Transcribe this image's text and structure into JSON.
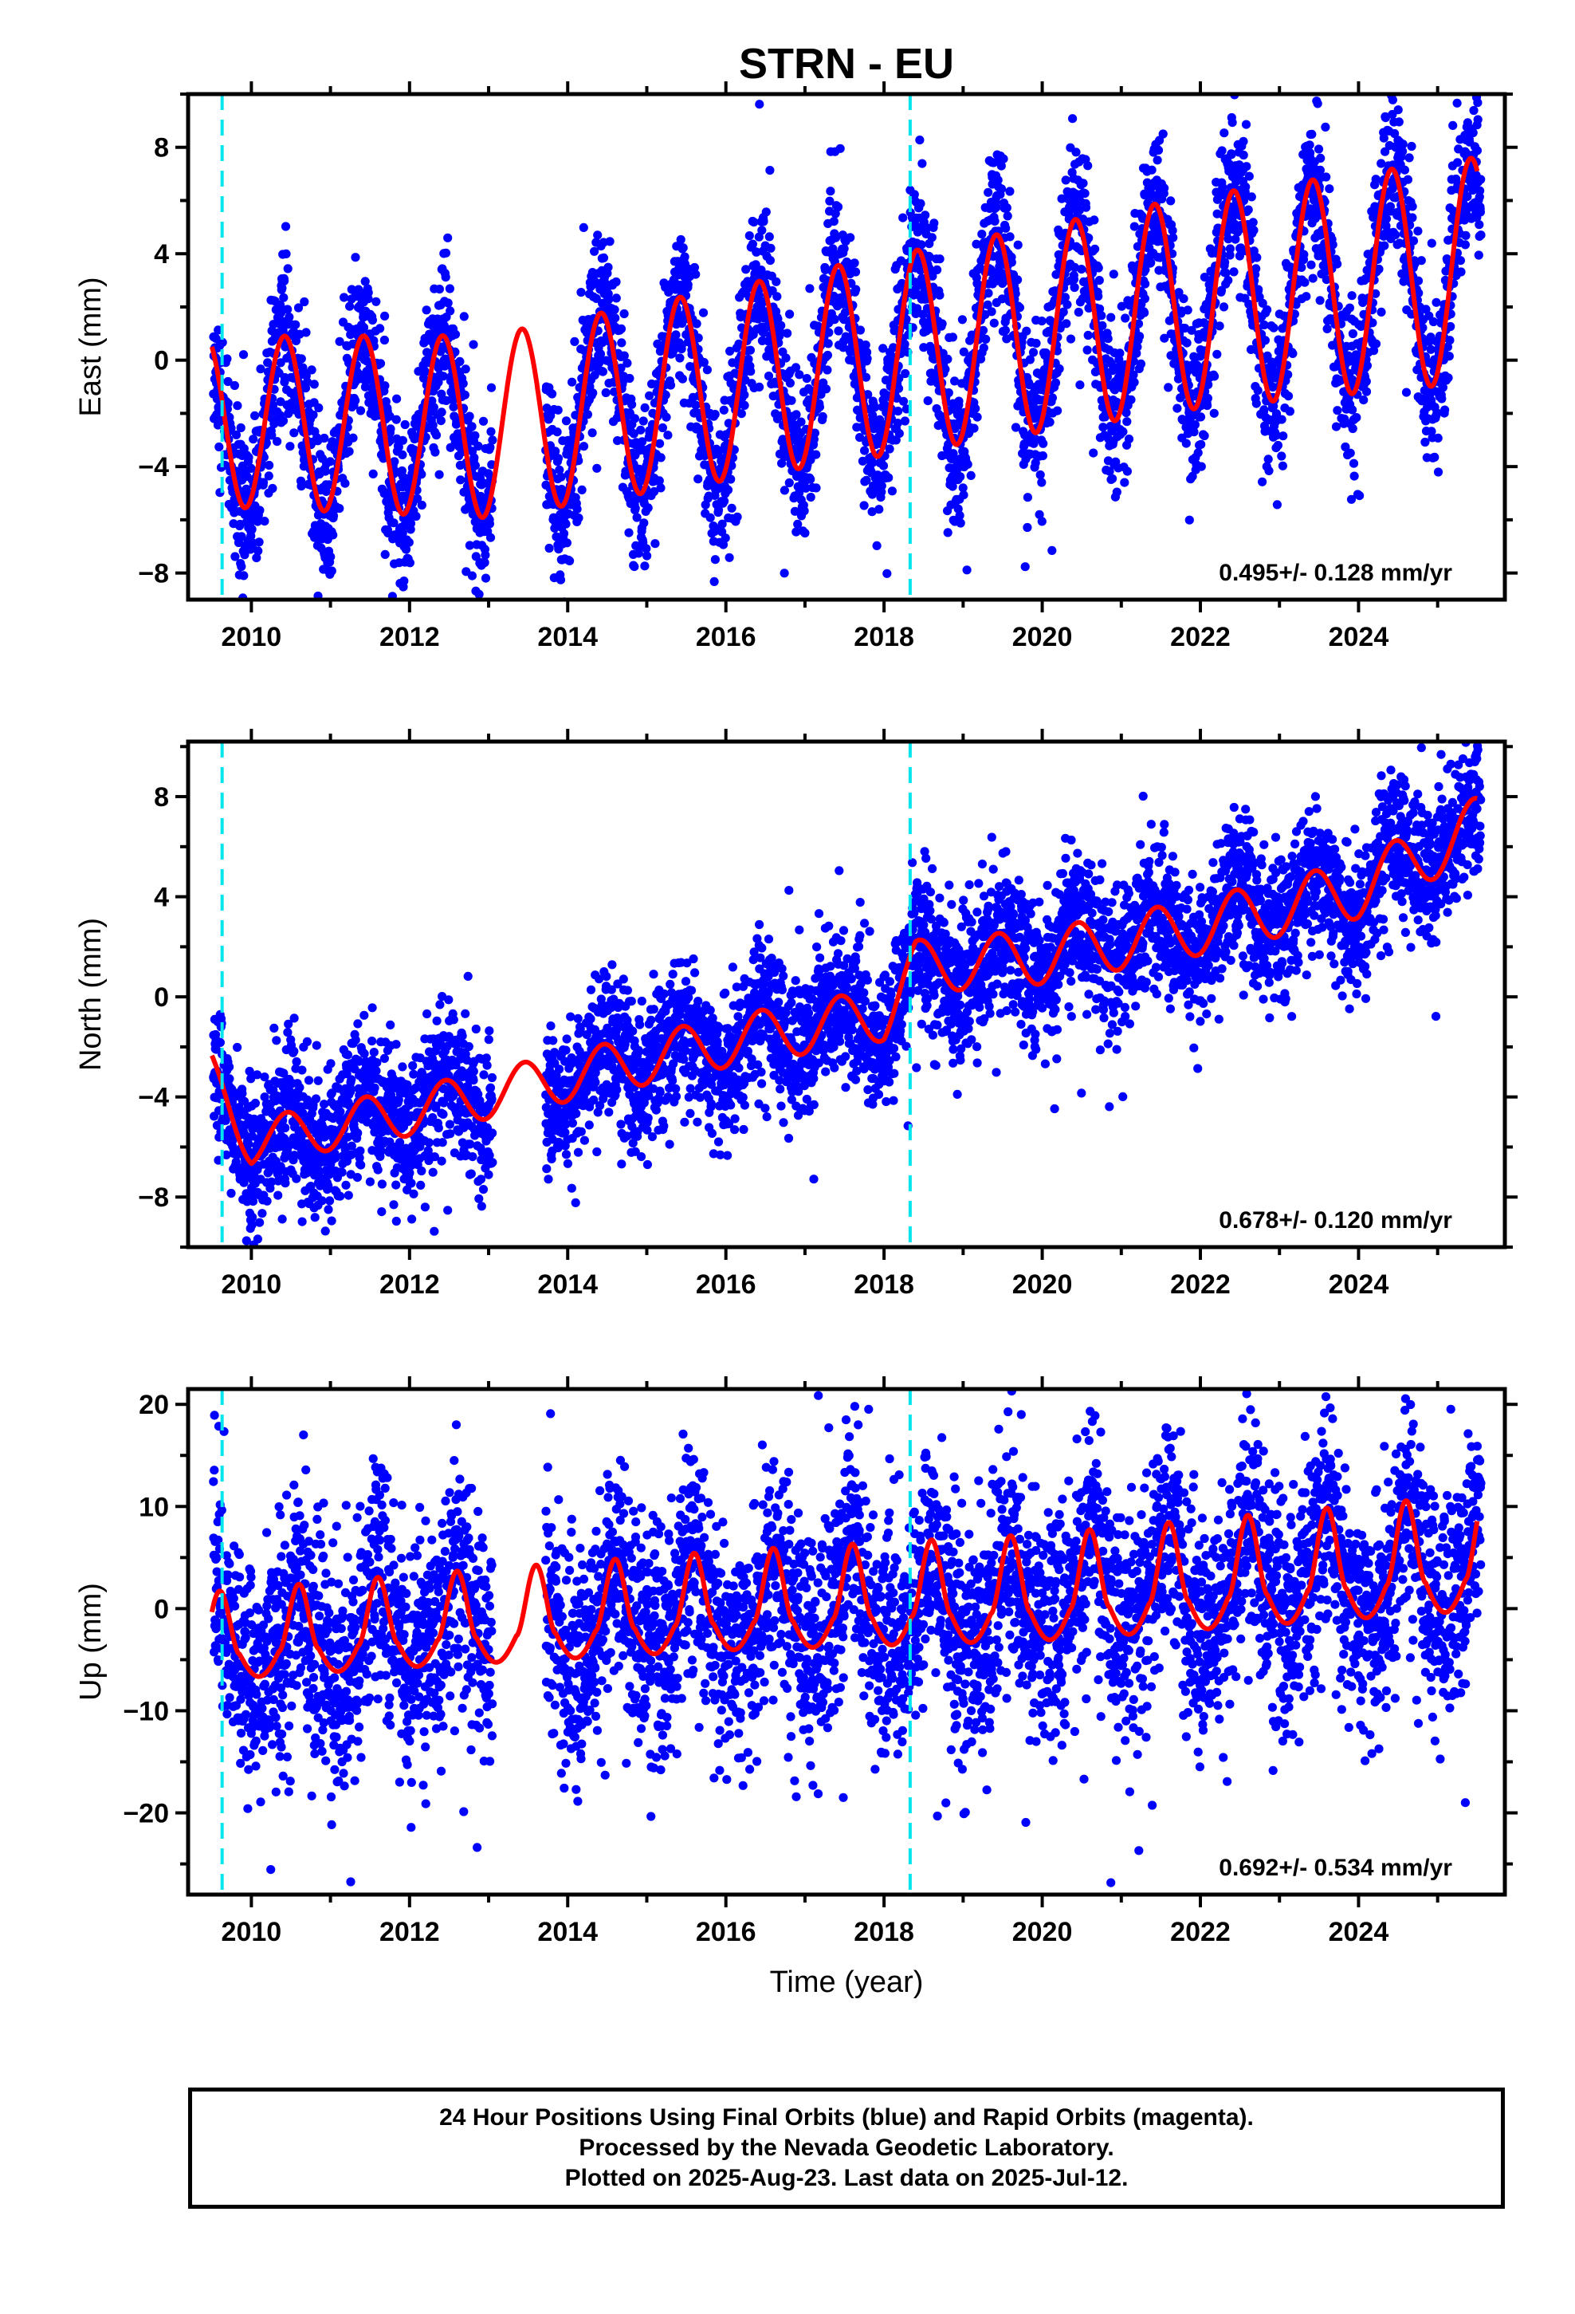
{
  "title": "STRN - EU",
  "footer": {
    "lines": [
      "24 Hour Positions Using Final Orbits (blue) and Rapid Orbits (magenta).",
      "Processed by the Nevada Geodetic Laboratory.",
      "Plotted on 2025-Aug-23. Last data on 2025-Jul-12."
    ]
  },
  "colors": {
    "points": "#0000ff",
    "model": "#ff0000",
    "breaks": "#00e5ee"
  },
  "chart_data": [
    {
      "type": "scatter",
      "component": "east",
      "ylabel": "East (mm)",
      "xlabel": "",
      "xlim": [
        2009.2,
        2025.85
      ],
      "ylim": [
        -9,
        10
      ],
      "xticks": [
        2010,
        2012,
        2014,
        2016,
        2018,
        2020,
        2022,
        2024
      ],
      "yticks": [
        -8,
        -4,
        0,
        4,
        8
      ],
      "ytick_labels": [
        "−8",
        "−4",
        "0",
        "4",
        "8"
      ],
      "rate_text": "0.495+/- 0.128 mm/yr",
      "breaks": [
        2009.63,
        2018.33
      ],
      "data_gap": [
        2013.05,
        2013.72
      ],
      "model": {
        "t0": 2009.5,
        "t_end": 2025.5,
        "offset": -2.3,
        "rate": 0.495,
        "amp": 3.2,
        "amp_growth": 0.02,
        "peak_phase": 0.42,
        "annual_sd": 1.5
      },
      "trend_anchor": {
        "x": [
          2009.5,
          2013.0,
          2017.5,
          2022.0,
          2025.5
        ],
        "y": [
          -2.3,
          -2.5,
          -0.1,
          2.2,
          3.4
        ]
      },
      "sample_points": {
        "x": [
          2009.55,
          2009.9,
          2010.45,
          2010.95,
          2011.45,
          2011.95,
          2012.45,
          2012.95,
          2013.45,
          2014.05,
          2014.45,
          2014.95,
          2015.45,
          2015.95,
          2016.45,
          2016.95,
          2017.45,
          2017.95,
          2018.45,
          2018.95,
          2019.45,
          2019.95,
          2020.45,
          2020.95,
          2021.45,
          2021.95,
          2022.45,
          2022.95,
          2023.45,
          2023.95,
          2024.45,
          2024.95,
          2025.45
        ],
        "y": [
          -1.2,
          -6.4,
          -0.2,
          -5.9,
          0.2,
          -5.5,
          0.6,
          -5.0,
          1.1,
          -4.5,
          1.7,
          -4.0,
          2.2,
          -3.5,
          2.6,
          -3.0,
          3.1,
          -2.5,
          3.2,
          -2.4,
          3.7,
          -1.8,
          4.3,
          -1.3,
          4.7,
          -0.8,
          5.3,
          -0.2,
          5.8,
          0.3,
          6.3,
          0.7,
          6.7
        ]
      }
    },
    {
      "type": "scatter",
      "component": "north",
      "ylabel": "North (mm)",
      "xlabel": "",
      "xlim": [
        2009.2,
        2025.85
      ],
      "ylim": [
        -10,
        10.2
      ],
      "xticks": [
        2010,
        2012,
        2014,
        2016,
        2018,
        2020,
        2022,
        2024
      ],
      "yticks": [
        -8,
        -4,
        0,
        4,
        8
      ],
      "ytick_labels": [
        "−8",
        "−4",
        "0",
        "4",
        "8"
      ],
      "rate_text": "0.678+/- 0.120 mm/yr",
      "breaks": [
        2009.63,
        2018.33
      ],
      "data_gap": [
        2013.05,
        2013.72
      ],
      "model": {
        "t0": 2009.5,
        "t_end": 2025.5,
        "offset": -5.2,
        "rate": 0.678,
        "amp": 0.9,
        "amp_growth": 0.02,
        "peak_phase": 0.45,
        "annual_sd": 1.4
      },
      "trend_anchor": {
        "x": [
          2009.5,
          2010.0,
          2012.0,
          2014.0,
          2016.0,
          2018.0,
          2018.4,
          2020.0,
          2022.0,
          2024.0,
          2025.5
        ],
        "y": [
          -3.2,
          -5.8,
          -4.6,
          -3.2,
          -1.8,
          -0.7,
          1.2,
          1.6,
          2.8,
          4.3,
          6.8
        ]
      },
      "sample_points": {
        "x": [
          2009.55,
          2009.9,
          2010.45,
          2010.95,
          2011.45,
          2011.95,
          2012.45,
          2012.95,
          2013.45,
          2014.05,
          2014.45,
          2014.95,
          2015.45,
          2015.95,
          2016.45,
          2016.95,
          2017.45,
          2017.95,
          2018.45,
          2018.95,
          2019.45,
          2019.95,
          2020.45,
          2020.95,
          2021.45,
          2021.95,
          2022.45,
          2022.95,
          2023.45,
          2023.95,
          2024.45,
          2024.95,
          2025.45
        ],
        "y": [
          -3.2,
          -6.2,
          -3.6,
          -5.4,
          -2.9,
          -4.8,
          -2.3,
          -4.1,
          -1.6,
          -3.3,
          -1.0,
          -2.5,
          -0.4,
          -1.9,
          0.4,
          -1.3,
          1.1,
          -0.7,
          2.2,
          0.9,
          3.0,
          1.5,
          3.8,
          2.2,
          4.5,
          2.7,
          5.1,
          3.4,
          5.8,
          4.0,
          6.4,
          4.6,
          7.0
        ]
      }
    },
    {
      "type": "scatter",
      "component": "up",
      "ylabel": "Up (mm)",
      "xlabel": "Time (year)",
      "xlim": [
        2009.2,
        2025.85
      ],
      "ylim": [
        -28,
        21.5
      ],
      "xticks": [
        2010,
        2012,
        2014,
        2016,
        2018,
        2020,
        2022,
        2024
      ],
      "yticks": [
        -20,
        -10,
        0,
        10,
        20
      ],
      "ytick_labels": [
        "−20",
        "−10",
        "0",
        "10",
        "20"
      ],
      "rate_text": "0.692+/- 0.534 mm/yr",
      "breaks": [
        2009.63,
        2018.33
      ],
      "data_gap": [
        2013.05,
        2013.72
      ],
      "model": {
        "t0": 2009.5,
        "t_end": 2025.5,
        "offset": -3.8,
        "rate": 0.692,
        "amp": 4.2,
        "amp_growth": 0.02,
        "peak_phase": 0.6,
        "annual_sd": 5.5
      },
      "trend_anchor": {
        "x": [
          2009.5,
          2012.0,
          2016.0,
          2020.0,
          2025.5
        ],
        "y": [
          -3.8,
          -2.4,
          -0.5,
          0.7,
          4.0
        ]
      },
      "sample_points": {
        "x": [
          2009.6,
          2010.1,
          2010.6,
          2011.1,
          2011.6,
          2012.1,
          2012.6,
          2013.1,
          2013.6,
          2014.1,
          2014.6,
          2015.1,
          2015.6,
          2016.1,
          2016.6,
          2017.1,
          2017.6,
          2018.1,
          2018.6,
          2019.1,
          2019.6,
          2020.1,
          2020.6,
          2021.1,
          2021.6,
          2022.1,
          2022.6,
          2023.1,
          2023.6,
          2024.1,
          2024.6,
          2025.1,
          2025.45
        ],
        "y": [
          -2.5,
          -7.0,
          1.2,
          -6.6,
          1.8,
          -6.0,
          2.4,
          -5.4,
          3.0,
          -4.6,
          3.8,
          -3.8,
          4.6,
          -3.0,
          5.2,
          -2.4,
          5.6,
          -2.0,
          4.4,
          -2.8,
          5.2,
          -2.2,
          5.8,
          -1.6,
          6.4,
          -1.0,
          7.0,
          -0.4,
          7.8,
          0.2,
          8.4,
          1.0,
          8.0
        ]
      }
    }
  ]
}
